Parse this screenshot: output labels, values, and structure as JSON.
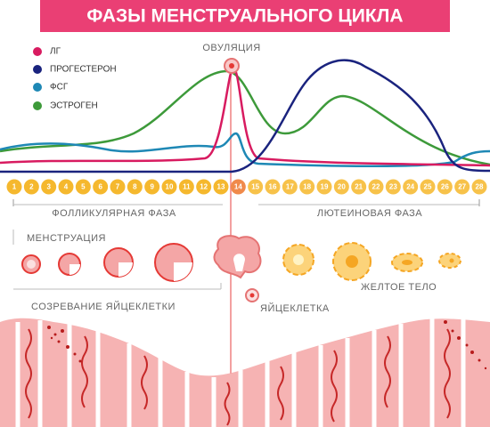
{
  "title": "ФАЗЫ МЕНСТРУАЛЬНОГО ЦИКЛА",
  "legend": [
    "ЛГ",
    "ПРОГЕСТЕРОН",
    "ФСГ",
    "ЭСТРОГЕН"
  ],
  "ovulation": "ОВУЛЯЦИЯ",
  "days": [
    1,
    2,
    3,
    4,
    5,
    6,
    7,
    8,
    9,
    10,
    11,
    12,
    13,
    14,
    15,
    16,
    17,
    18,
    19,
    20,
    21,
    22,
    23,
    24,
    25,
    26,
    27,
    28
  ],
  "phases": {
    "follicular": "ФОЛЛИКУЛЯРНАЯ ФАЗА",
    "luteal": "ЛЮТЕИНОВАЯ ФАЗА"
  },
  "menstruation": "МЕНСТРУАЦИЯ",
  "maturation": "СОЗРЕВАНИЕ ЯЙЦЕКЛЕТКИ",
  "egg": "ЯЙЦЕКЛЕТКА",
  "corpus_luteum": "ЖЕЛТОЕ ТЕЛО"
}
